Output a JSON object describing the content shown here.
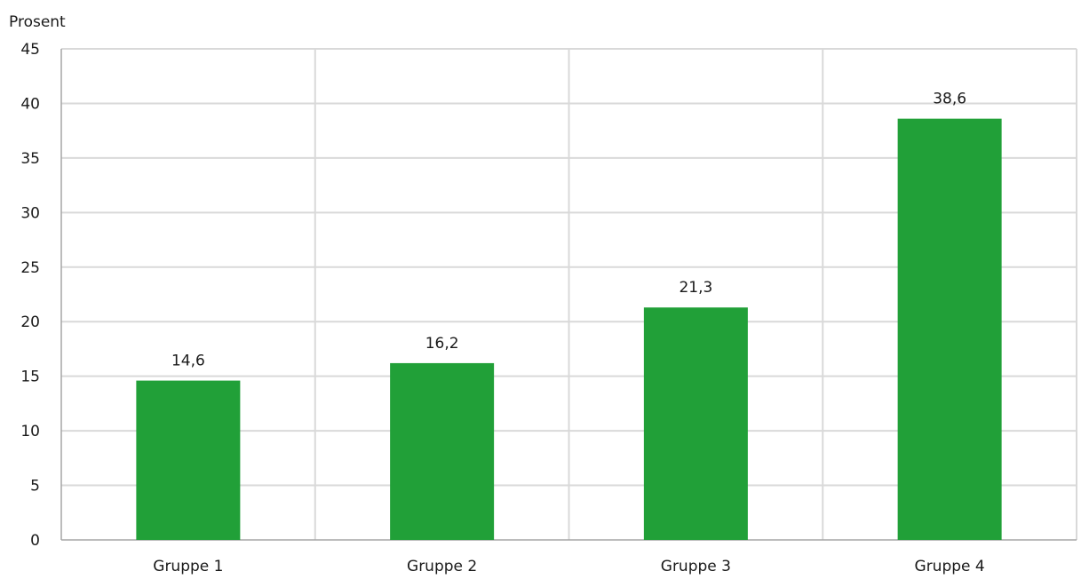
{
  "chart_data": {
    "type": "bar",
    "y_unit_label": "Prosent",
    "categories": [
      "Gruppe 1",
      "Gruppe 2",
      "Gruppe 3",
      "Gruppe 4"
    ],
    "series": [
      {
        "values": [
          14.6,
          16.2,
          21.3,
          38.6
        ],
        "data_labels": [
          "14,6",
          "16,2",
          "21,3",
          "38,6"
        ],
        "color": "#21a038"
      }
    ],
    "ylim": [
      0,
      45
    ],
    "y_ticks": [
      0,
      5,
      10,
      15,
      20,
      25,
      30,
      35,
      40,
      45
    ],
    "grid": "both",
    "legend": "none",
    "colors": {
      "grid": "#d9d9d9",
      "axis": "#a6a6a6",
      "bar": "#21a038",
      "text": "#1a1a1a"
    }
  }
}
